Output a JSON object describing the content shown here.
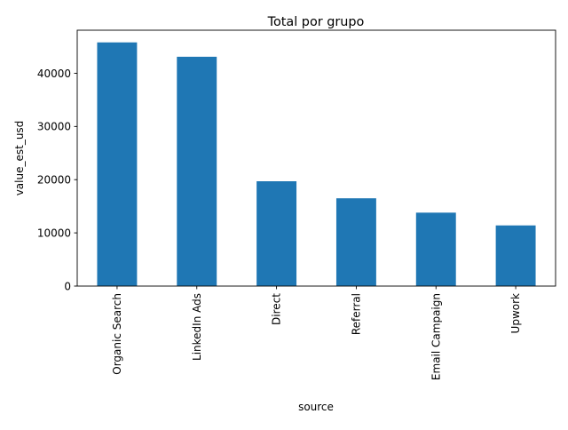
{
  "chart_data": {
    "type": "bar",
    "title": "Total por grupo",
    "xlabel": "source",
    "ylabel": "value_est_usd",
    "categories": [
      "Organic Search",
      "LinkedIn Ads",
      "Direct",
      "Referral",
      "Email Campaign",
      "Upwork"
    ],
    "values": [
      45800,
      43100,
      19700,
      16500,
      13800,
      11400
    ],
    "ylim": [
      0,
      48090
    ],
    "yticks": [
      0,
      10000,
      20000,
      30000,
      40000
    ],
    "ytick_labels": [
      "0",
      "10000",
      "20000",
      "30000",
      "40000"
    ],
    "bar_color": "#1f77b4",
    "grid": false,
    "legend": "none"
  }
}
